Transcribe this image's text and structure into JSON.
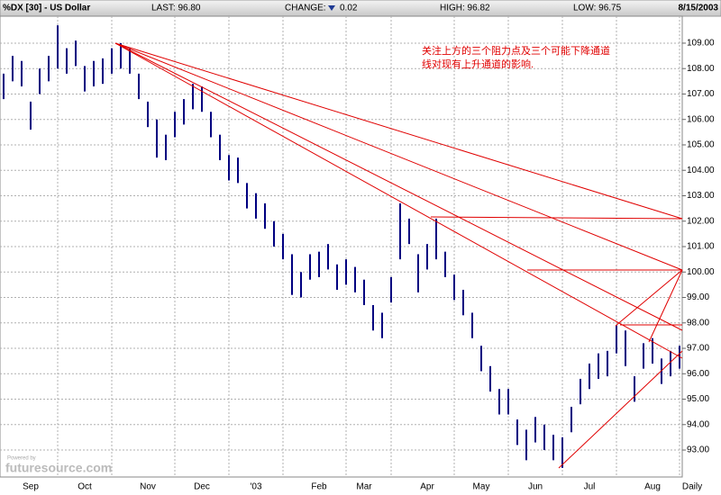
{
  "chart_data": {
    "type": "range-bar",
    "header": {
      "title": "%DX [30] - US Dollar",
      "last": "LAST: 96.80",
      "change_label": "CHANGE:",
      "change": "0.02",
      "high": "HIGH: 96.82",
      "low": "LOW: 96.75",
      "date": "8/15/2003"
    },
    "annotations": [
      "关注上方的三个阻力点及三个可能下降通道",
      "线对现有上升通道的影响."
    ],
    "period_label": "Daily",
    "watermark": {
      "small": "Powered by",
      "brand": "futuresource.com"
    },
    "color": "#000080",
    "categories": [
      null,
      null,
      null,
      "Sep",
      null,
      null,
      null,
      null,
      null,
      "Oct",
      null,
      null,
      null,
      null,
      null,
      null,
      "Nov",
      null,
      null,
      null,
      null,
      null,
      "Dec",
      null,
      null,
      null,
      null,
      null,
      "'03",
      null,
      null,
      null,
      null,
      null,
      null,
      "Feb",
      null,
      null,
      null,
      null,
      "Mar",
      null,
      null,
      null,
      null,
      null,
      null,
      "Apr",
      null,
      null,
      null,
      null,
      null,
      "May",
      null,
      null,
      null,
      null,
      null,
      "Jun",
      null,
      null,
      null,
      null,
      null,
      "Jul",
      null,
      null,
      null,
      null,
      null,
      null,
      "Aug",
      null,
      null,
      null
    ],
    "highs": [
      107.8,
      108.5,
      108.3,
      106.7,
      108,
      108.5,
      109.7,
      108.8,
      109.1,
      108.1,
      108.3,
      108.4,
      108.8,
      109,
      108.8,
      107.8,
      106.7,
      106,
      105.4,
      106.3,
      106.8,
      107.4,
      107.3,
      106.3,
      105.4,
      104.6,
      104.5,
      103.5,
      103.1,
      102.7,
      102,
      101.5,
      100.7,
      100,
      100.7,
      100.8,
      101.1,
      100.3,
      100.5,
      100.2,
      99.7,
      98.7,
      98.4,
      99.8,
      102.7,
      102.1,
      100.7,
      101.1,
      102.1,
      100.8,
      99.9,
      99.3,
      98.4,
      97.1,
      96.3,
      95.4,
      95.4,
      94.2,
      93.8,
      94.3,
      94,
      93.6,
      93.5,
      94.7,
      95.8,
      96.4,
      96.8,
      96.9,
      97.9,
      97.7,
      95.9,
      97.2,
      97.4,
      96.6,
      96.9,
      97.1
    ],
    "lows": [
      106.8,
      107.5,
      107.3,
      105.6,
      107,
      107.5,
      108,
      107.8,
      108.1,
      107.1,
      107.3,
      107.4,
      107.8,
      108,
      107.8,
      106.8,
      105.7,
      104.5,
      104.4,
      105.3,
      105.8,
      106.4,
      106.3,
      105.3,
      104.4,
      103.6,
      103.5,
      102.5,
      102.1,
      101.7,
      101,
      100.5,
      99.1,
      99,
      99.7,
      99.8,
      100.1,
      99.3,
      99.5,
      99.2,
      98.7,
      97.7,
      97.4,
      98.8,
      100.5,
      101.1,
      99.2,
      100.1,
      100.5,
      99.8,
      98.9,
      98.3,
      97.4,
      96.1,
      95.3,
      94.4,
      94.4,
      93.2,
      92.6,
      93.3,
      93,
      92.6,
      92.3,
      93.7,
      94.8,
      95.4,
      95.8,
      95.9,
      96.8,
      96.3,
      94.9,
      96.2,
      96.4,
      95.6,
      95.9,
      96.2
    ],
    "ylim": [
      91.94,
      110.06
    ],
    "yticks": [
      {
        "value": 93,
        "label": "93.00"
      },
      {
        "value": 94,
        "label": "94.00"
      },
      {
        "value": 95,
        "label": "95.00"
      },
      {
        "value": 96,
        "label": "96.00"
      },
      {
        "value": 97,
        "label": "97.00"
      },
      {
        "value": 98,
        "label": "98.00"
      },
      {
        "value": 99,
        "label": "99.00"
      },
      {
        "value": 100,
        "label": "100.00"
      },
      {
        "value": 101,
        "label": "101.00"
      },
      {
        "value": 102,
        "label": "102.00"
      },
      {
        "value": 103,
        "label": "103.00"
      },
      {
        "value": 104,
        "label": "104.00"
      },
      {
        "value": 105,
        "label": "105.00"
      },
      {
        "value": 106,
        "label": "106.00"
      },
      {
        "value": 107,
        "label": "107.00"
      },
      {
        "value": 108,
        "label": "108.00"
      },
      {
        "value": 109,
        "label": "109.00"
      }
    ],
    "grid": true
  }
}
